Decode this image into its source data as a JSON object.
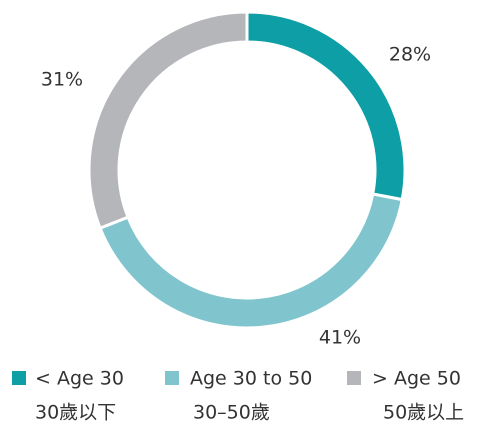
{
  "chart_data": {
    "type": "pie",
    "donut": true,
    "categories": [
      "< Age 30",
      "Age 30 to 50",
      "> Age 50"
    ],
    "sublabels": [
      "30歲以下",
      "30–50歲",
      "50歲以上"
    ],
    "values": [
      28,
      41,
      31
    ],
    "value_labels": [
      "28%",
      "41%",
      "31%"
    ],
    "colors": [
      "#0e9ea6",
      "#80c5cd",
      "#b5b6ba"
    ],
    "legend": "bottom"
  }
}
